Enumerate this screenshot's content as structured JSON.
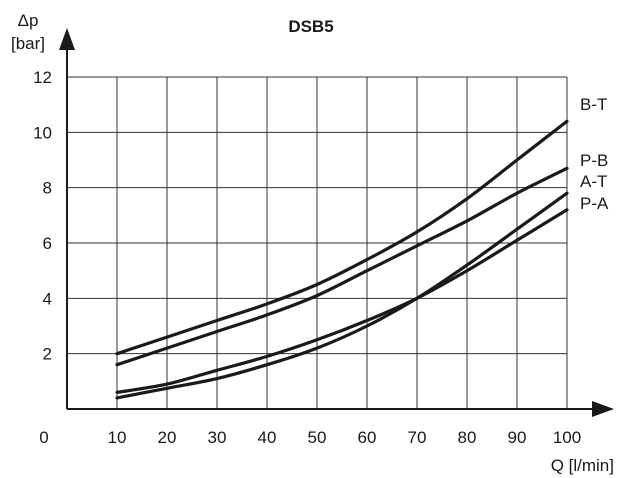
{
  "chart_data": {
    "type": "line",
    "title": "DSB5",
    "ylabel_symbol": "Δp",
    "ylabel_unit": "[bar]",
    "xlabel": "Q [l/min]",
    "origin_label": "0",
    "xlim": [
      0,
      100
    ],
    "ylim": [
      0,
      12
    ],
    "x_ticks": [
      10,
      20,
      30,
      40,
      50,
      60,
      70,
      80,
      90,
      100
    ],
    "y_ticks": [
      2,
      4,
      6,
      8,
      10,
      12
    ],
    "grid": true,
    "series": [
      {
        "name": "B-T",
        "x": [
          10,
          20,
          30,
          40,
          50,
          60,
          70,
          80,
          90,
          100
        ],
        "y": [
          2.0,
          2.6,
          3.2,
          3.8,
          4.5,
          5.4,
          6.4,
          7.6,
          9.0,
          10.4
        ]
      },
      {
        "name": "P-B",
        "x": [
          10,
          20,
          30,
          40,
          50,
          60,
          70,
          80,
          90,
          100
        ],
        "y": [
          1.6,
          2.2,
          2.8,
          3.4,
          4.1,
          5.0,
          5.9,
          6.8,
          7.8,
          8.7
        ]
      },
      {
        "name": "A-T",
        "x": [
          10,
          20,
          30,
          40,
          50,
          60,
          70,
          80,
          90,
          100
        ],
        "y": [
          0.4,
          0.75,
          1.1,
          1.6,
          2.2,
          3.0,
          4.0,
          5.2,
          6.5,
          7.8
        ]
      },
      {
        "name": "P-A",
        "x": [
          10,
          20,
          30,
          40,
          50,
          60,
          70,
          80,
          90,
          100
        ],
        "y": [
          0.6,
          0.9,
          1.4,
          1.9,
          2.5,
          3.2,
          4.0,
          5.0,
          6.1,
          7.2
        ]
      }
    ]
  }
}
